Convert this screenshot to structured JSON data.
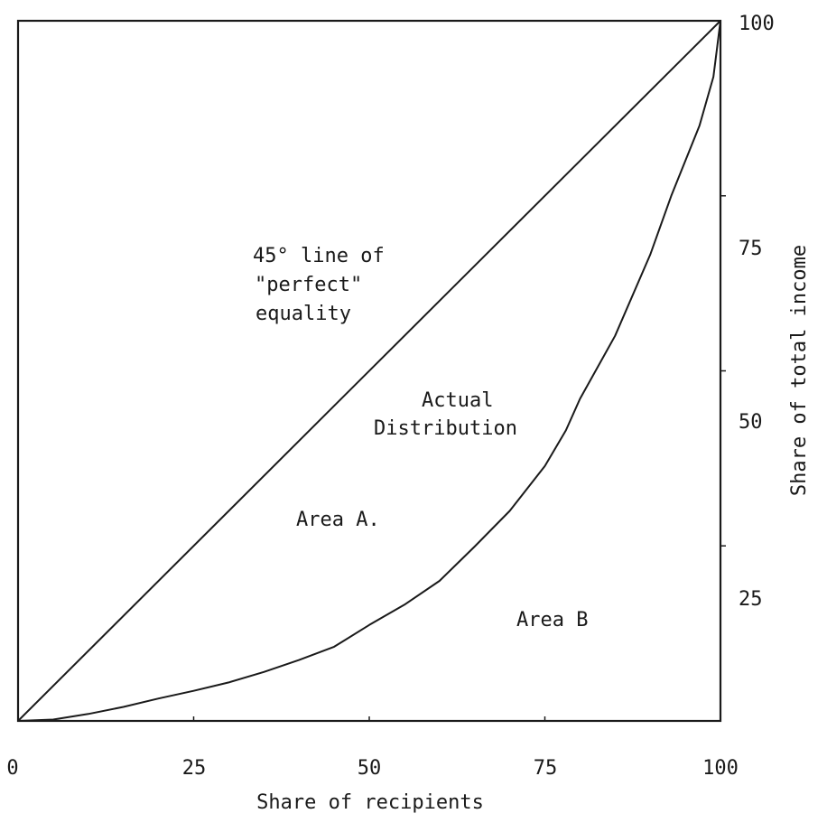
{
  "chart_data": {
    "type": "line",
    "xlabel": "Share of recipients",
    "ylabel": "Share of total income",
    "xlim": [
      0,
      100
    ],
    "ylim": [
      0,
      100
    ],
    "x_ticks": [
      "0",
      "25",
      "50",
      "75",
      "100"
    ],
    "y_ticks": [
      "25",
      "50",
      "75",
      "100"
    ],
    "grid": false,
    "series": [
      {
        "values_x": [
          0,
          100
        ],
        "values_y": [
          0,
          100
        ]
      },
      {
        "values_x": [
          0,
          5,
          10,
          15,
          20,
          25,
          30,
          35,
          40,
          45,
          50,
          55,
          60,
          65,
          70,
          75,
          78,
          80,
          85,
          90,
          93,
          95,
          97,
          99,
          100
        ],
        "values_y": [
          0,
          0.2,
          1.0,
          2.0,
          3.2,
          4.3,
          5.5,
          7.0,
          8.7,
          10.6,
          13.7,
          16.6,
          20.0,
          24.9,
          30.0,
          36.4,
          41.5,
          46.0,
          55.0,
          66.6,
          75.0,
          80.0,
          85.0,
          92.0,
          100
        ]
      }
    ],
    "annotations": {
      "equality_line_1": "45° line of",
      "equality_line_2": "\"perfect\"",
      "equality_line_3": "equality",
      "actual_1": "Actual",
      "actual_2": "Distribution",
      "area_a": "Area A.",
      "area_b": "Area B"
    }
  }
}
